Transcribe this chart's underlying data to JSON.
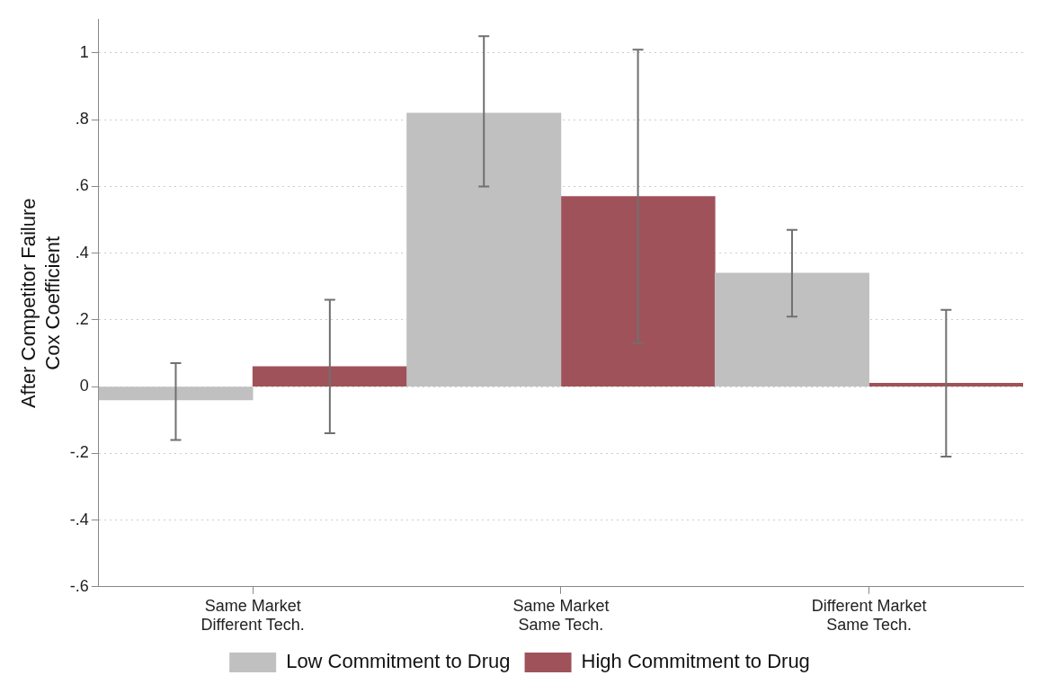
{
  "chart_data": {
    "type": "bar",
    "ylabel": "After Competitor Failure\nCox Coefficient",
    "categories": [
      "Same Market\nDifferent Tech.",
      "Same Market\nSame Tech.",
      "Different Market\nSame Tech."
    ],
    "series": [
      {
        "name": "Low Commitment to Drug",
        "color": "#c0c0c0",
        "values": [
          -0.04,
          0.82,
          0.34
        ],
        "errors": [
          [
            -0.16,
            0.07
          ],
          [
            0.6,
            1.05
          ],
          [
            0.21,
            0.47
          ]
        ]
      },
      {
        "name": "High Commitment to Drug",
        "color": "#a0525a",
        "values": [
          0.06,
          0.57,
          0.01
        ],
        "errors": [
          [
            -0.14,
            0.26
          ],
          [
            0.13,
            1.01
          ],
          [
            -0.21,
            0.23
          ]
        ]
      }
    ],
    "ylim": [
      -0.6,
      1.1
    ],
    "yticks": [
      {
        "value": -0.6,
        "label": "-.6"
      },
      {
        "value": -0.4,
        "label": "-.4"
      },
      {
        "value": -0.2,
        "label": "-.2"
      },
      0,
      {
        "value": 0.2,
        "label": ".2"
      },
      {
        "value": 0.4,
        "label": ".4"
      },
      {
        "value": 0.6,
        "label": ".6"
      },
      {
        "value": 0.8,
        "label": ".8"
      },
      1
    ],
    "grid": "y",
    "legend": "bottom"
  }
}
